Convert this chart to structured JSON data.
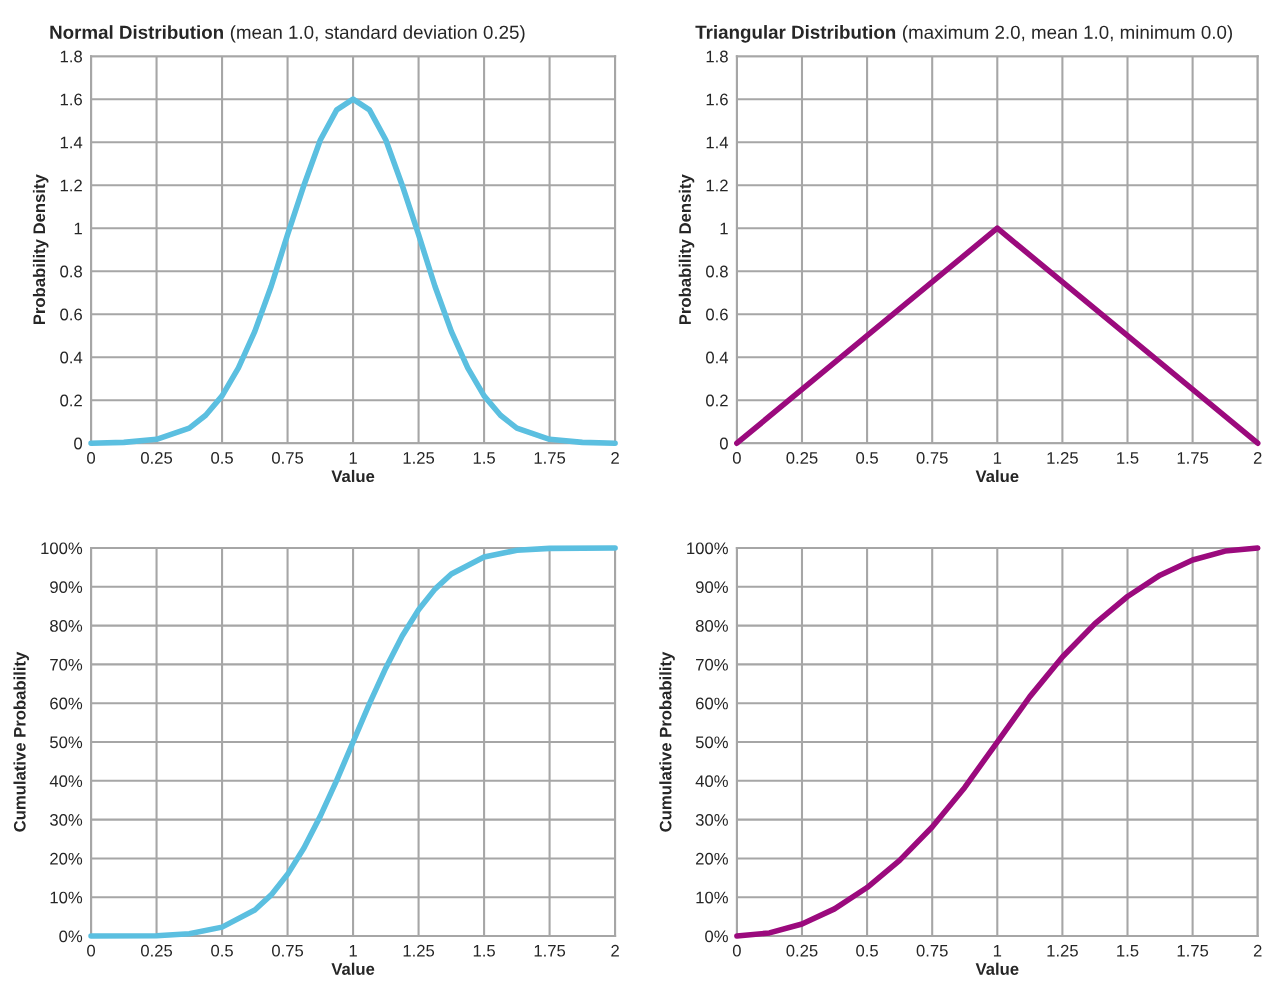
{
  "chart_data": [
    {
      "type": "line",
      "title": "Normal Distribution",
      "subtitle": "(mean 1.0, standard deviation 0.25)",
      "xlabel": "Value",
      "ylabel": "Probability Density",
      "x": [
        0,
        0.125,
        0.25,
        0.375,
        0.4375,
        0.5,
        0.5625,
        0.625,
        0.6875,
        0.75,
        0.8125,
        0.875,
        0.9375,
        1,
        1.0625,
        1.125,
        1.1875,
        1.25,
        1.3125,
        1.375,
        1.4375,
        1.5,
        1.5625,
        1.625,
        1.75,
        1.875,
        2
      ],
      "series": [
        {
          "color": "#5bbfe0",
          "values": [
            0,
            0.004,
            0.018,
            0.07,
            0.13,
            0.22,
            0.35,
            0.52,
            0.73,
            0.97,
            1.2,
            1.41,
            1.55,
            1.6,
            1.55,
            1.41,
            1.2,
            0.97,
            0.73,
            0.52,
            0.35,
            0.22,
            0.13,
            0.07,
            0.018,
            0.004,
            0
          ]
        }
      ],
      "xlim": [
        0,
        2
      ],
      "xticks": [
        0,
        0.25,
        0.5,
        0.75,
        1,
        1.25,
        1.5,
        1.75,
        2
      ],
      "ylim": [
        0,
        1.8
      ],
      "yticks": [
        0,
        0.2,
        0.4,
        0.6,
        0.8,
        1,
        1.2,
        1.4,
        1.6,
        1.8
      ],
      "grid": true,
      "marker": "none",
      "line_style": "solid"
    },
    {
      "type": "line",
      "title": "Triangular Distribution",
      "subtitle": "(maximum 2.0, mean 1.0, minimum 0.0)",
      "xlabel": "Value",
      "ylabel": "Probability Density",
      "x": [
        0,
        0.5,
        1,
        1.5,
        2
      ],
      "series": [
        {
          "color": "#9b0a7d",
          "values": [
            0,
            0.5,
            1,
            0.5,
            0
          ]
        }
      ],
      "xlim": [
        0,
        2
      ],
      "xticks": [
        0,
        0.25,
        0.5,
        0.75,
        1,
        1.25,
        1.5,
        1.75,
        2
      ],
      "ylim": [
        0,
        1.8
      ],
      "yticks": [
        0,
        0.2,
        0.4,
        0.6,
        0.8,
        1,
        1.2,
        1.4,
        1.6,
        1.8
      ],
      "grid": true,
      "marker": "none",
      "line_style": "solid"
    },
    {
      "type": "line",
      "xlabel": "Value",
      "ylabel": "Cumulative Probability",
      "x": [
        0,
        0.25,
        0.375,
        0.5,
        0.625,
        0.6875,
        0.75,
        0.8125,
        0.875,
        0.9375,
        1,
        1.0625,
        1.125,
        1.1875,
        1.25,
        1.3125,
        1.375,
        1.5,
        1.625,
        1.75,
        2
      ],
      "series": [
        {
          "color": "#5bbfe0",
          "values": [
            0,
            0.1,
            0.6,
            2.3,
            6.7,
            10.6,
            15.9,
            22.7,
            30.9,
            40.1,
            50,
            59.9,
            69.1,
            77.3,
            84.1,
            89.4,
            93.3,
            97.7,
            99.4,
            99.9,
            100
          ]
        }
      ],
      "xlim": [
        0,
        2
      ],
      "xticks": [
        0,
        0.25,
        0.5,
        0.75,
        1,
        1.25,
        1.5,
        1.75,
        2
      ],
      "ylim": [
        0,
        100
      ],
      "yticks": [
        {
          "value": 0,
          "label": "0%"
        },
        {
          "value": 10,
          "label": "10%"
        },
        {
          "value": 20,
          "label": "20%"
        },
        {
          "value": 30,
          "label": "30%"
        },
        {
          "value": 40,
          "label": "40%"
        },
        {
          "value": 50,
          "label": "50%"
        },
        {
          "value": 60,
          "label": "60%"
        },
        {
          "value": 70,
          "label": "70%"
        },
        {
          "value": 80,
          "label": "80%"
        },
        {
          "value": 90,
          "label": "90%"
        },
        {
          "value": 100,
          "label": "100%"
        }
      ],
      "grid": true,
      "marker": "none",
      "line_style": "solid"
    },
    {
      "type": "line",
      "xlabel": "Value",
      "ylabel": "Cumulative Probability",
      "x": [
        0,
        0.125,
        0.25,
        0.375,
        0.5,
        0.625,
        0.75,
        0.875,
        1,
        1.125,
        1.25,
        1.375,
        1.5,
        1.625,
        1.75,
        1.875,
        2
      ],
      "series": [
        {
          "color": "#9b0a7d",
          "values": [
            0,
            0.8,
            3.1,
            7,
            12.5,
            19.5,
            28.1,
            38.3,
            50,
            61.7,
            71.9,
            80.5,
            87.5,
            93,
            96.9,
            99.2,
            100
          ]
        }
      ],
      "xlim": [
        0,
        2
      ],
      "xticks": [
        0,
        0.25,
        0.5,
        0.75,
        1,
        1.25,
        1.5,
        1.75,
        2
      ],
      "ylim": [
        0,
        100
      ],
      "yticks": [
        {
          "value": 0,
          "label": "0%"
        },
        {
          "value": 10,
          "label": "10%"
        },
        {
          "value": 20,
          "label": "20%"
        },
        {
          "value": 30,
          "label": "30%"
        },
        {
          "value": 40,
          "label": "40%"
        },
        {
          "value": 50,
          "label": "50%"
        },
        {
          "value": 60,
          "label": "60%"
        },
        {
          "value": 70,
          "label": "70%"
        },
        {
          "value": 80,
          "label": "80%"
        },
        {
          "value": 90,
          "label": "90%"
        },
        {
          "value": 100,
          "label": "100%"
        }
      ],
      "grid": true,
      "marker": "none",
      "line_style": "solid"
    }
  ]
}
